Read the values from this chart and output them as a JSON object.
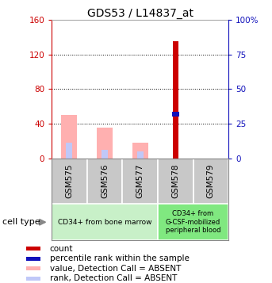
{
  "title": "GDS53 / L14837_at",
  "samples": [
    "GSM575",
    "GSM576",
    "GSM577",
    "GSM578",
    "GSM579"
  ],
  "ylim_left": [
    0,
    160
  ],
  "ylim_right": [
    0,
    100
  ],
  "yticks_left": [
    0,
    40,
    80,
    120,
    160
  ],
  "yticks_right": [
    0,
    25,
    50,
    75,
    100
  ],
  "ytick_labels_right": [
    "0",
    "25",
    "50",
    "75",
    "100%"
  ],
  "count_color": "#cc0000",
  "percentile_color": "#1111bb",
  "value_absent_color": "#ffb0b0",
  "rank_absent_color": "#c0c8f8",
  "bars": {
    "GSM575": {
      "value_absent": 50,
      "rank_absent": 18
    },
    "GSM576": {
      "value_absent": 36,
      "rank_absent": 10
    },
    "GSM577": {
      "value_absent": 18,
      "rank_absent": 8
    },
    "GSM578": {
      "count": 135,
      "percentile": 32
    },
    "GSM579": {}
  },
  "group1_samples": [
    0,
    1,
    2
  ],
  "group2_samples": [
    3,
    4
  ],
  "group1_label": "CD34+ from bone marrow",
  "group2_label": "CD34+ from\nG-CSF-mobilized\nperipheral blood",
  "group1_color": "#c8f0c8",
  "group2_color": "#80e880",
  "sample_box_color": "#c8c8c8",
  "legend_items": [
    {
      "label": "count",
      "color": "#cc0000"
    },
    {
      "label": "percentile rank within the sample",
      "color": "#1111bb"
    },
    {
      "label": "value, Detection Call = ABSENT",
      "color": "#ffb0b0"
    },
    {
      "label": "rank, Detection Call = ABSENT",
      "color": "#c0c8f8"
    }
  ],
  "cell_type_label": "cell type",
  "left_axis_color": "#cc0000",
  "right_axis_color": "#1111bb",
  "background_color": "#ffffff",
  "title_fontsize": 10,
  "tick_fontsize": 7.5,
  "legend_fontsize": 7.5
}
